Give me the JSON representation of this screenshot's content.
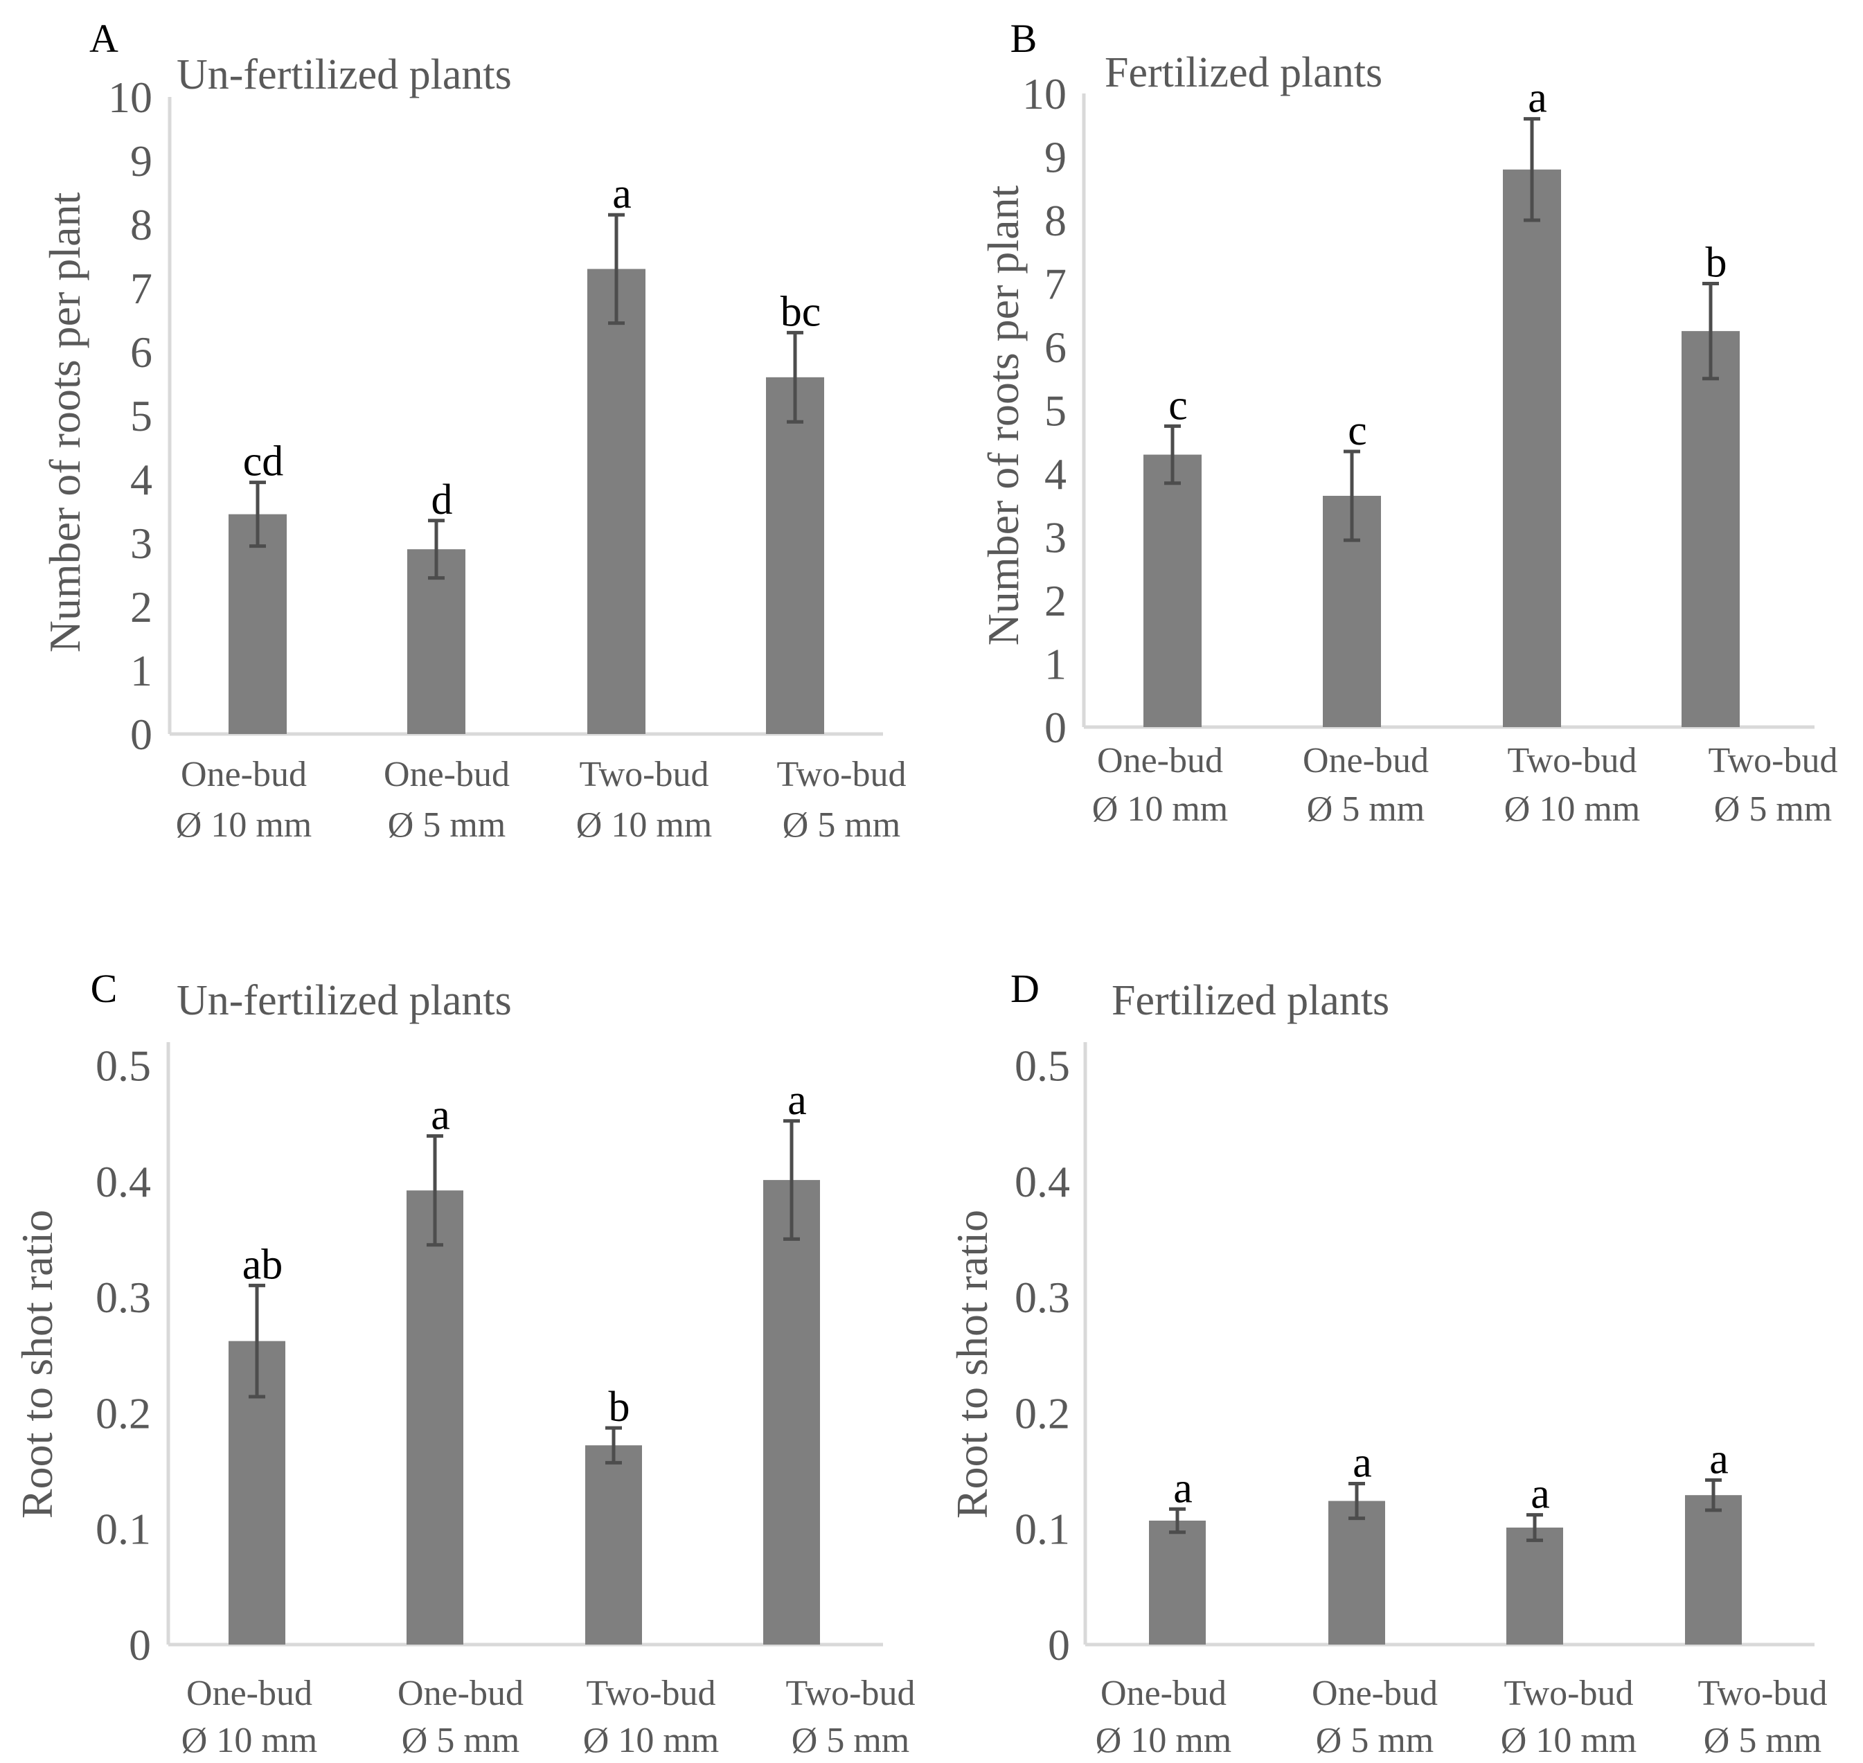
{
  "chart_data": [
    {
      "panel": "A",
      "type": "bar",
      "title": "Un-fertilized plants",
      "ylabel": "Number of roots per plant",
      "xlabel": "",
      "ylim": [
        0,
        10
      ],
      "yticks": [
        "0",
        "1",
        "2",
        "3",
        "4",
        "5",
        "6",
        "7",
        "8",
        "9",
        "10"
      ],
      "categories": [
        {
          "line1": "One-bud",
          "line2": "Ø 10 mm"
        },
        {
          "line1": "One-bud",
          "line2": "Ø 5 mm"
        },
        {
          "line1": "Two-bud",
          "line2": "Ø 10 mm"
        },
        {
          "line1": "Two-bud",
          "line2": "Ø 5 mm"
        }
      ],
      "values": [
        3.45,
        2.9,
        7.3,
        5.6
      ],
      "errors": [
        0.5,
        0.45,
        0.85,
        0.7
      ],
      "labels": [
        "cd",
        "d",
        "a",
        "bc"
      ],
      "grid": false
    },
    {
      "panel": "B",
      "type": "bar",
      "title": "Fertilized plants",
      "ylabel": "Number of roots per plant",
      "xlabel": "",
      "ylim": [
        0,
        10
      ],
      "yticks": [
        "0",
        "1",
        "2",
        "3",
        "4",
        "5",
        "6",
        "7",
        "8",
        "9",
        "10"
      ],
      "categories": [
        {
          "line1": "One-bud",
          "line2": "Ø 10 mm"
        },
        {
          "line1": "One-bud",
          "line2": "Ø 5 mm"
        },
        {
          "line1": "Two-bud",
          "line2": "Ø 10 mm"
        },
        {
          "line1": "Two-bud",
          "line2": "Ø 5 mm"
        }
      ],
      "values": [
        4.3,
        3.65,
        8.8,
        6.25
      ],
      "errors": [
        0.45,
        0.7,
        0.8,
        0.75
      ],
      "labels": [
        "c",
        "c",
        "a",
        "b"
      ],
      "grid": false
    },
    {
      "panel": "C",
      "type": "bar",
      "title": "Un-fertilized plants",
      "ylabel": "Root to shot ratio",
      "xlabel": "",
      "ylim": [
        0,
        0.52
      ],
      "yticks": [
        "0",
        "0.1",
        "0.2",
        "0.3",
        "0.4",
        "0.5"
      ],
      "categories": [
        {
          "line1": "One-bud",
          "line2": "Ø 10 mm"
        },
        {
          "line1": "One-bud",
          "line2": "Ø 5 mm"
        },
        {
          "line1": "Two-bud",
          "line2": "Ø 10 mm"
        },
        {
          "line1": "Two-bud",
          "line2": "Ø 5 mm"
        }
      ],
      "values": [
        0.262,
        0.392,
        0.172,
        0.401
      ],
      "errors": [
        0.048,
        0.047,
        0.015,
        0.051
      ],
      "labels": [
        "ab",
        "a",
        "b",
        "a"
      ],
      "grid": false
    },
    {
      "panel": "D",
      "type": "bar",
      "title": "Fertilized plants",
      "ylabel": "Root to shot ratio",
      "xlabel": "",
      "ylim": [
        0,
        0.52
      ],
      "yticks": [
        "0",
        "0.1",
        "0.2",
        "0.3",
        "0.4",
        "0.5"
      ],
      "categories": [
        {
          "line1": "One-bud",
          "line2": "Ø 10 mm"
        },
        {
          "line1": "One-bud",
          "line2": "Ø 5 mm"
        },
        {
          "line1": "Two-bud",
          "line2": "Ø 10 mm"
        },
        {
          "line1": "Two-bud",
          "line2": "Ø 5 mm"
        }
      ],
      "values": [
        0.107,
        0.124,
        0.101,
        0.129
      ],
      "errors": [
        0.01,
        0.015,
        0.011,
        0.013
      ],
      "labels": [
        "a",
        "a",
        "a",
        "a"
      ],
      "grid": false
    }
  ],
  "colors": {
    "bar": "#7f7f7f",
    "error_bar": "#4d4d4d",
    "axis": "#d9d9d9",
    "text": "#595959",
    "label": "#000000"
  }
}
